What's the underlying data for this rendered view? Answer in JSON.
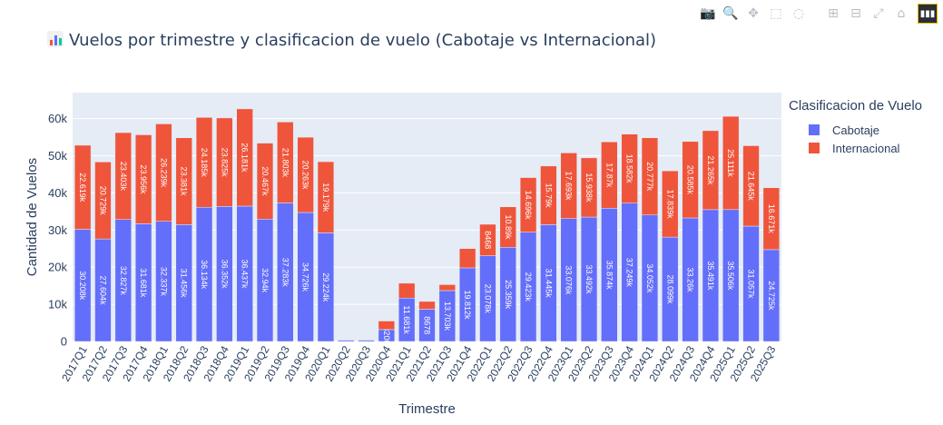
{
  "title": "Vuelos por trimestre y clasificacion de vuelo (Cabotaje vs Internacional)",
  "title_icon": "bar-chart-icon",
  "modebar": [
    {
      "name": "camera-icon",
      "glyph": "📷"
    },
    {
      "name": "zoom-icon",
      "glyph": "🔍"
    },
    {
      "name": "pan-icon",
      "glyph": "✥"
    },
    {
      "name": "box-select-icon",
      "glyph": "⬚"
    },
    {
      "name": "lasso-select-icon",
      "glyph": "◌"
    },
    {
      "name": "zoom-in-icon",
      "glyph": "⊞"
    },
    {
      "name": "zoom-out-icon",
      "glyph": "⊟"
    },
    {
      "name": "autoscale-icon",
      "glyph": "⤢"
    },
    {
      "name": "reset-axes-icon",
      "glyph": "⌂"
    }
  ],
  "chart_data": {
    "type": "bar",
    "barmode": "stack",
    "title": "Vuelos por trimestre y clasificacion de vuelo (Cabotaje vs Internacional)",
    "xlabel": "Trimestre",
    "ylabel": "Cantidad de Vuelos",
    "ylim": [
      0,
      67000
    ],
    "yticks": [
      0,
      10000,
      20000,
      30000,
      40000,
      50000,
      60000
    ],
    "ytick_labels": [
      "0",
      "10k",
      "20k",
      "30k",
      "40k",
      "50k",
      "60k"
    ],
    "grid": true,
    "legend_title": "Clasificacion de Vuelo",
    "legend_position": "right",
    "categories": [
      "2017Q1",
      "2017Q2",
      "2017Q3",
      "2017Q4",
      "2018Q1",
      "2018Q2",
      "2018Q3",
      "2018Q4",
      "2019Q1",
      "2019Q2",
      "2019Q3",
      "2019Q4",
      "2020Q1",
      "2020Q2",
      "2020Q3",
      "2020Q4",
      "2021Q1",
      "2021Q2",
      "2021Q3",
      "2021Q4",
      "2022Q1",
      "2022Q2",
      "2022Q3",
      "2022Q4",
      "2023Q1",
      "2023Q2",
      "2023Q3",
      "2023Q4",
      "2024Q1",
      "2024Q2",
      "2024Q3",
      "2024Q4",
      "2025Q1",
      "2025Q2",
      "2025Q3"
    ],
    "series": [
      {
        "name": "Cabotaje",
        "color": "#636efa",
        "values": [
          30208,
          27604,
          32827,
          31681,
          32337,
          31456,
          36134,
          36352,
          36437,
          32940,
          37283,
          34726,
          29224,
          330,
          320,
          3200,
          11681,
          8678,
          13703,
          19812,
          23078,
          25359,
          29423,
          31445,
          33076,
          33492,
          35874,
          37249,
          34052,
          28099,
          33260,
          35491,
          35506,
          31057,
          24725
        ],
        "labels": [
          "30.208k",
          "27.604k",
          "32.827k",
          "31.681k",
          "32.337k",
          "31.456k",
          "36.134k",
          "36.352k",
          "36.437k",
          "32.94k",
          "37.283k",
          "34.726k",
          "29.224k",
          "",
          "",
          "3200",
          "11.681k",
          "8678",
          "13.703k",
          "19.812k",
          "23.078k",
          "25.359k",
          "29.423k",
          "31.445k",
          "33.076k",
          "33.492k",
          "35.874k",
          "37.249k",
          "34.052k",
          "28.099k",
          "33.26k",
          "35.491k",
          "35.506k",
          "31.057k",
          "24.725k"
        ]
      },
      {
        "name": "Internacional",
        "color": "#ef553b",
        "values": [
          22619,
          20729,
          23403,
          23956,
          26239,
          23381,
          24185,
          23825,
          26181,
          20467,
          21803,
          20263,
          19179,
          150,
          160,
          2300,
          4000,
          2100,
          1600,
          5200,
          8468,
          10890,
          14696,
          15790,
          17693,
          15938,
          17870,
          18582,
          20777,
          17839,
          20585,
          21265,
          25111,
          21645,
          16671
        ],
        "labels": [
          "22.619k",
          "20.729k",
          "23.403k",
          "23.956k",
          "26.239k",
          "23.381k",
          "24.185k",
          "23.825k",
          "26.181k",
          "20.467k",
          "21.803k",
          "20.263k",
          "19.179k",
          "",
          "",
          "",
          "",
          "",
          "",
          "",
          "8468",
          "10.89k",
          "14.696k",
          "15.79k",
          "17.693k",
          "15.938k",
          "17.87k",
          "18.582k",
          "20.777k",
          "17.839k",
          "20.585k",
          "21.265k",
          "25.111k",
          "21.645k",
          "16.671k"
        ]
      }
    ]
  }
}
